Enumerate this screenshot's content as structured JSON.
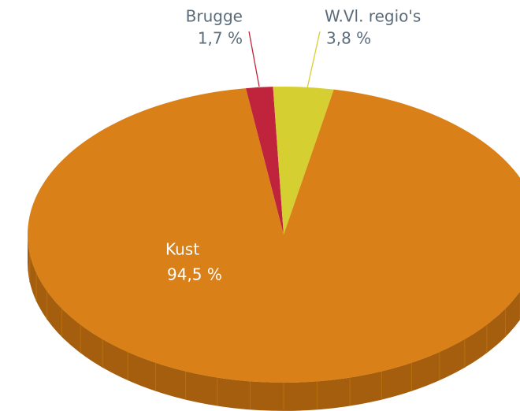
{
  "chart_data": {
    "type": "pie",
    "categories": [
      "Brugge",
      "W.Vl. regio's",
      "Kust"
    ],
    "values": [
      1.7,
      3.8,
      94.5
    ],
    "value_labels": [
      "1,7 %",
      "3,8 %",
      "94,5 %"
    ],
    "colors": [
      "#c0243c",
      "#d6cf32",
      "#d98019"
    ]
  }
}
